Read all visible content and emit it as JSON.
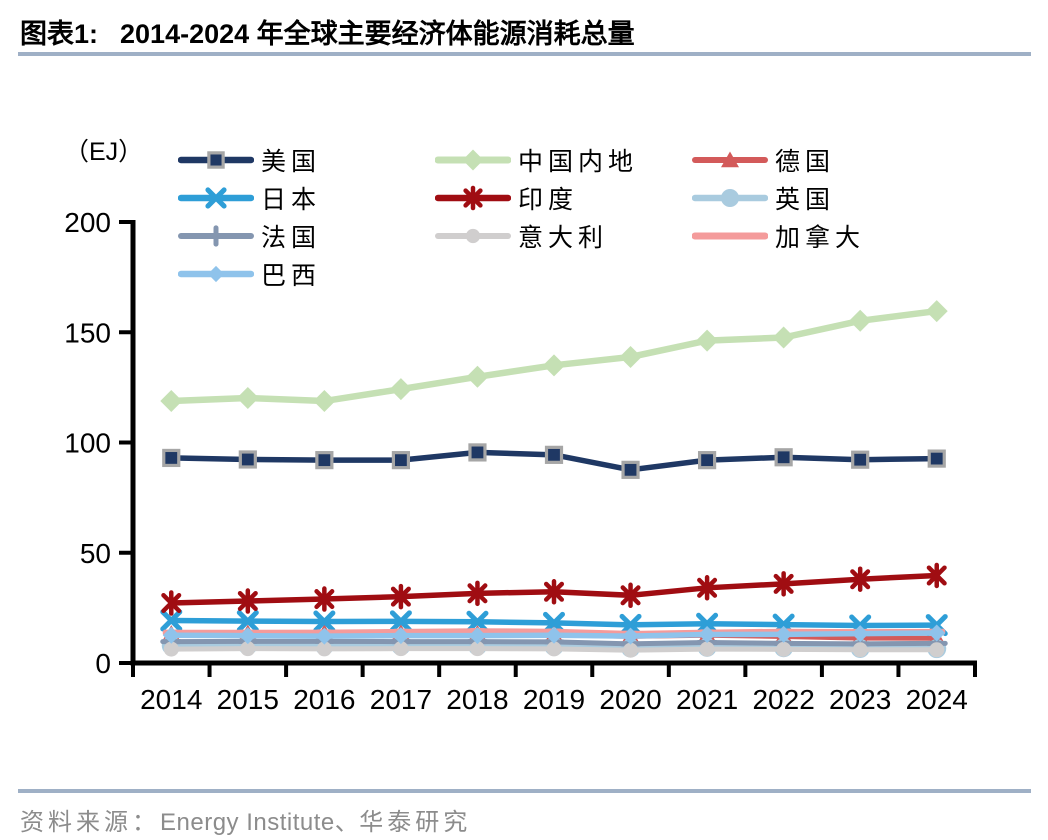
{
  "header": {
    "label": "图表1:",
    "title": "2014-2024 年全球主要经济体能源消耗总量"
  },
  "footer": {
    "source_label": "资料来源：",
    "source_en": "Energy Institute、",
    "source_cn": "华泰研究"
  },
  "theme": {
    "divider_color": "#9FB0C6",
    "source_text_color": "#8C8C8C",
    "axis_color": "#000000"
  },
  "chart_data": {
    "type": "line",
    "title": "2014-2024 年全球主要经济体能源消耗总量",
    "unit": "（EJ）",
    "xlabel": "",
    "ylabel": "EJ",
    "ylim": [
      0,
      200
    ],
    "y_ticks": [
      0,
      50,
      100,
      150,
      200
    ],
    "grid": false,
    "legend_position": "top",
    "categories": [
      "2014",
      "2015",
      "2016",
      "2017",
      "2018",
      "2019",
      "2020",
      "2021",
      "2022",
      "2023",
      "2024"
    ],
    "series": [
      {
        "name": "美国",
        "color": "#1F3864",
        "marker": "square",
        "marker_border": "#A6A6A6",
        "values": [
          93.0,
          92.3,
          92.0,
          92.0,
          95.5,
          94.4,
          87.6,
          92.0,
          93.3,
          92.2,
          92.7
        ]
      },
      {
        "name": "中国内地",
        "color": "#C5E0B4",
        "marker": "diamond",
        "values": [
          118.8,
          120.2,
          118.8,
          124.2,
          129.8,
          135.0,
          138.8,
          146.2,
          147.6,
          155.2,
          159.6
        ]
      },
      {
        "name": "德国",
        "color": "#D35A5A",
        "marker": "triangle",
        "values": [
          13.1,
          13.3,
          13.5,
          13.5,
          13.1,
          12.8,
          12.1,
          12.6,
          12.0,
          11.3,
          11.2
        ]
      },
      {
        "name": "日本",
        "color": "#2E9ED7",
        "marker": "x",
        "values": [
          19.3,
          19.0,
          18.8,
          18.9,
          18.7,
          18.2,
          17.3,
          17.8,
          17.4,
          17.0,
          17.2
        ]
      },
      {
        "name": "印度",
        "color": "#A00D12",
        "marker": "asterisk",
        "values": [
          27.2,
          28.1,
          29.0,
          30.1,
          31.6,
          32.3,
          30.7,
          34.1,
          35.9,
          38.0,
          39.7
        ]
      },
      {
        "name": "英国",
        "color": "#A9CBDF",
        "marker": "circle",
        "values": [
          7.9,
          7.9,
          7.8,
          7.7,
          7.7,
          7.5,
          6.8,
          7.1,
          6.9,
          6.6,
          6.5
        ]
      },
      {
        "name": "法国",
        "color": "#8496B0",
        "marker": "plus",
        "values": [
          9.7,
          9.8,
          9.8,
          9.7,
          9.7,
          9.6,
          8.7,
          9.3,
          8.9,
          8.7,
          8.9
        ]
      },
      {
        "name": "意大利",
        "color": "#D0CECE",
        "marker": "circle",
        "values": [
          6.3,
          6.5,
          6.4,
          6.5,
          6.5,
          6.4,
          5.8,
          6.3,
          6.2,
          6.0,
          6.0
        ]
      },
      {
        "name": "加拿大",
        "color": "#F49B9B",
        "marker": "dash",
        "values": [
          13.7,
          13.7,
          13.8,
          14.1,
          14.4,
          14.2,
          13.2,
          13.8,
          14.2,
          14.0,
          14.1
        ]
      },
      {
        "name": "巴西",
        "color": "#8FC3EB",
        "marker": "diamond",
        "values": [
          12.6,
          12.4,
          12.2,
          12.4,
          12.4,
          12.6,
          12.2,
          12.9,
          13.0,
          13.3,
          13.6
        ]
      }
    ]
  }
}
